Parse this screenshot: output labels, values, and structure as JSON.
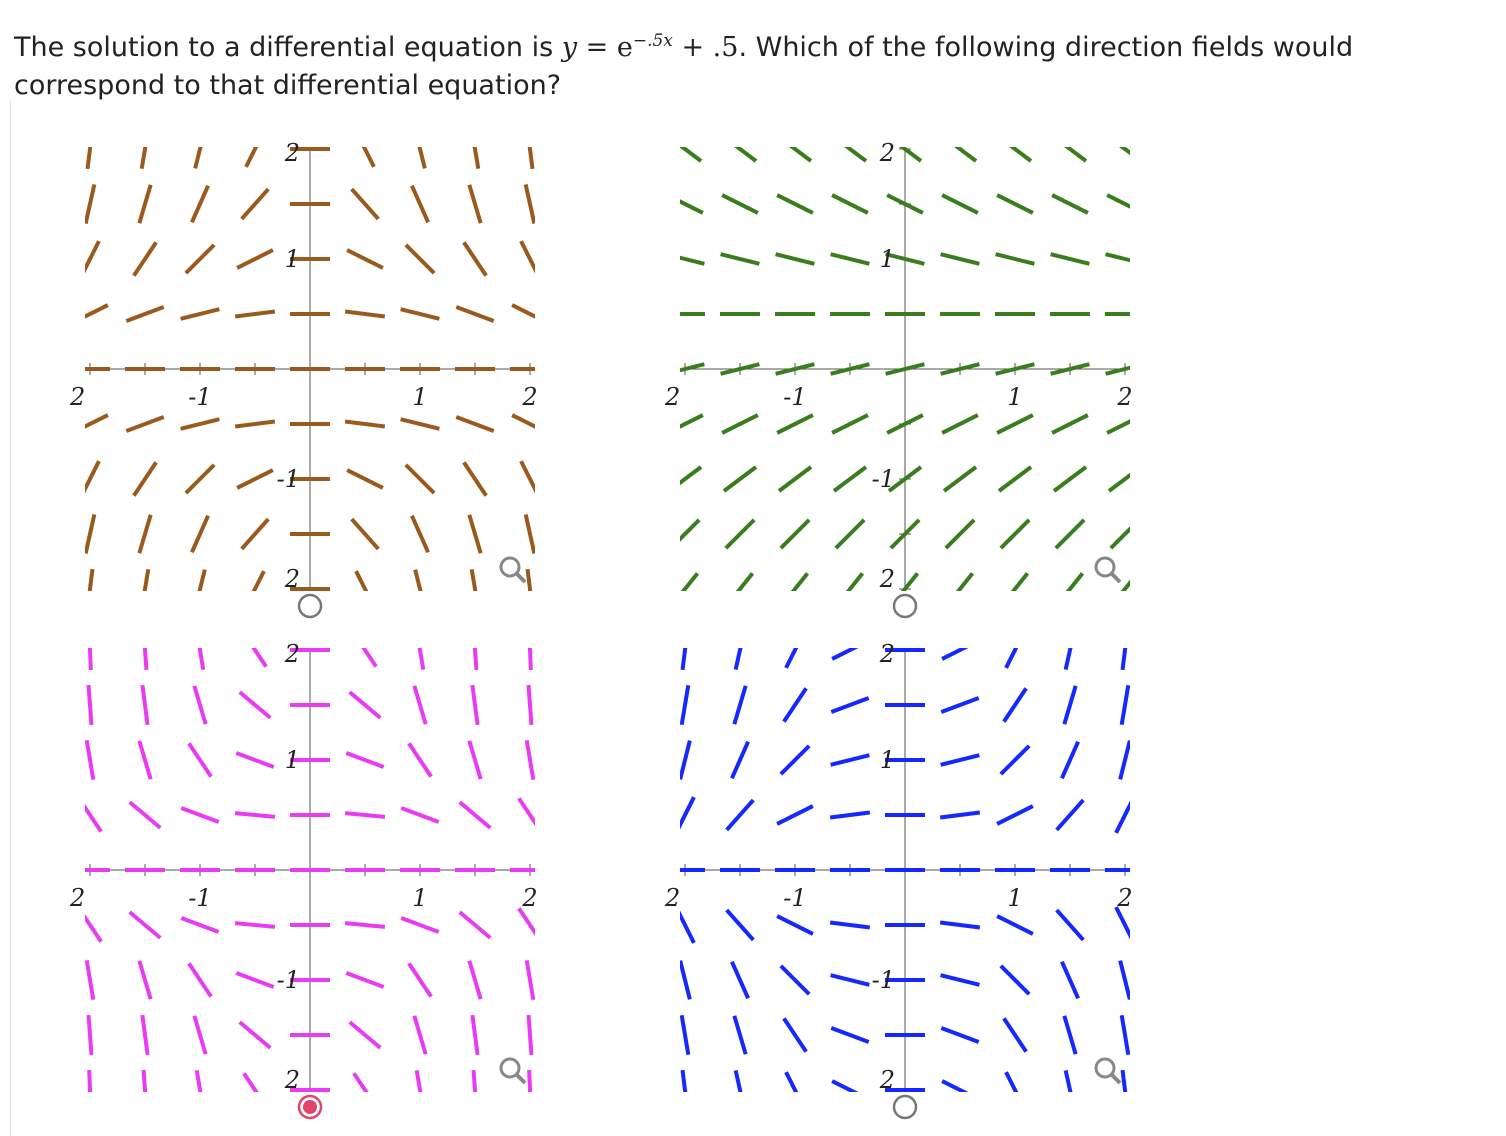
{
  "question": {
    "before": "The solution to a differential equation is ",
    "math_var": "y",
    "math_eq": " = e",
    "math_exp": "−.5x",
    "math_after": " + .5",
    "after": ". Which of the following direction fields would correspond to that differential equation?"
  },
  "fields": [
    {
      "color": "#9a5a1e",
      "x_labels": [
        "2",
        "-1",
        "1",
        "2"
      ],
      "y_labels": [
        "2",
        "1",
        "-1",
        "2"
      ],
      "selected": false
    },
    {
      "color": "#3a7d1e",
      "x_labels": [
        "2",
        "-1",
        "1",
        "2"
      ],
      "y_labels": [
        "2",
        "1",
        "-1",
        "2"
      ],
      "selected": false
    },
    {
      "color": "#e83cf2",
      "x_labels": [
        "2",
        "-1",
        "1",
        "2"
      ],
      "y_labels": [
        "2",
        "1",
        "-1",
        "2"
      ],
      "selected": true
    },
    {
      "color": "#1428ff",
      "x_labels": [
        "2",
        "-1",
        "1",
        "2"
      ],
      "y_labels": [
        "2",
        "1",
        "-1",
        "2"
      ],
      "selected": false
    }
  ]
}
